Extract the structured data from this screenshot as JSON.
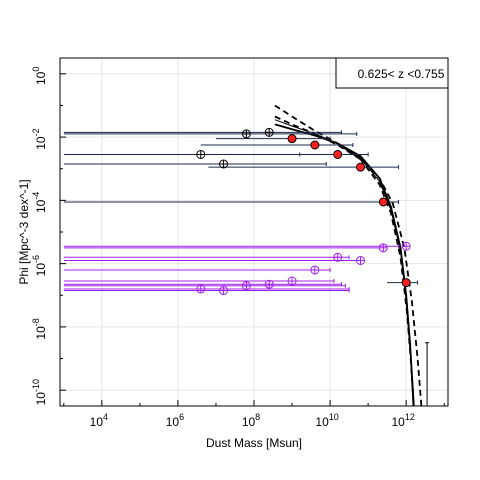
{
  "chart_data": {
    "type": "scatter",
    "title": "",
    "xlabel": "Dust Mass [Msun]",
    "ylabel": "Phi [Mpc^-3 dex^-1]",
    "legend_text": "0.625< z <0.755",
    "legend_position": "top-right",
    "xscale": "log",
    "yscale": "log",
    "xlim_log10": [
      2.9,
      13.1
    ],
    "ylim_log10": [
      -10.5,
      0.5
    ],
    "grid": true,
    "x_ticks": [
      {
        "label": "10",
        "exp": "4",
        "log10": 4
      },
      {
        "label": "10",
        "exp": "6",
        "log10": 6
      },
      {
        "label": "10",
        "exp": "8",
        "log10": 8
      },
      {
        "label": "10",
        "exp": "10",
        "log10": 10
      },
      {
        "label": "10",
        "exp": "12",
        "log10": 12
      }
    ],
    "y_ticks": [
      {
        "label": "10",
        "exp": "0",
        "log10": 0
      },
      {
        "label": "10",
        "exp": "-2",
        "log10": -2
      },
      {
        "label": "10",
        "exp": "-4",
        "log10": -4
      },
      {
        "label": "10",
        "exp": "-6",
        "log10": -6
      },
      {
        "label": "10",
        "exp": "-8",
        "log10": -8
      },
      {
        "label": "10",
        "exp": "-10",
        "log10": -10
      }
    ],
    "series": [
      {
        "color": "#ff2020",
        "marker": "filled-circle",
        "points": [
          {
            "x": 9.0,
            "y": -2.05,
            "xlo": 7.0,
            "xhi": 10.0
          },
          {
            "x": 9.6,
            "y": -2.25,
            "xlo": 6.6,
            "xhi": 10.6
          },
          {
            "x": 10.2,
            "y": -2.55,
            "xlo": 7.3,
            "xhi": 11.0
          },
          {
            "x": 10.8,
            "y": -2.95,
            "xlo": 6.8,
            "xhi": 11.8
          },
          {
            "x": 11.4,
            "y": -4.05,
            "xlo": 3.0,
            "xhi": 11.8
          },
          {
            "x": 12.0,
            "y": -6.6,
            "xlo": 11.5,
            "xhi": 12.3
          }
        ]
      },
      {
        "color": "#000000",
        "marker": "open-circle-cross",
        "points": [
          {
            "x": 6.6,
            "y": -2.55,
            "xlo": 3.0,
            "xhi": 9.2
          },
          {
            "x": 7.2,
            "y": -2.85,
            "xlo": 3.0,
            "xhi": 9.9
          },
          {
            "x": 7.8,
            "y": -1.9,
            "xlo": 3.0,
            "xhi": 10.7
          },
          {
            "x": 8.4,
            "y": -1.85,
            "xlo": 3.0,
            "xhi": 10.3
          }
        ]
      },
      {
        "color": "#a020f0",
        "marker": "open-circle-cross",
        "points": [
          {
            "x": 6.6,
            "y": -6.8,
            "xlo": 3.0,
            "xhi": 10.5
          },
          {
            "x": 7.2,
            "y": -6.85,
            "xlo": 3.0,
            "xhi": 10.5
          },
          {
            "x": 7.8,
            "y": -6.7,
            "xlo": 3.0,
            "xhi": 10.4
          },
          {
            "x": 8.4,
            "y": -6.65,
            "xlo": 3.0,
            "xhi": 10.3
          },
          {
            "x": 9.0,
            "y": -6.55,
            "xlo": 3.0,
            "xhi": 10.1
          },
          {
            "x": 9.6,
            "y": -6.2,
            "xlo": 3.0,
            "xhi": 10.0
          },
          {
            "x": 10.2,
            "y": -5.8,
            "xlo": 3.0,
            "xhi": 10.5
          },
          {
            "x": 10.8,
            "y": -5.9,
            "xlo": 3.0,
            "xhi": 10.8
          },
          {
            "x": 11.4,
            "y": -5.5,
            "xlo": 3.0,
            "xhi": 11.3
          },
          {
            "x": 12.0,
            "y": -5.45,
            "xlo": 3.0,
            "xhi": 11.8
          }
        ]
      }
    ],
    "upper_limit": {
      "x": 12.55,
      "y_from": -10.5,
      "y_to": -8.5
    },
    "fit_curves": [
      {
        "style": "solid",
        "weight": "thick",
        "points": [
          [
            8.55,
            -1.6
          ],
          [
            9.0,
            -1.75
          ],
          [
            9.6,
            -1.95
          ],
          [
            10.2,
            -2.2
          ],
          [
            10.8,
            -2.6
          ],
          [
            11.3,
            -3.3
          ],
          [
            11.6,
            -4.2
          ],
          [
            11.85,
            -5.5
          ],
          [
            12.0,
            -7.0
          ],
          [
            12.1,
            -8.5
          ],
          [
            12.2,
            -10.5
          ]
        ]
      },
      {
        "style": "solid",
        "weight": "thin",
        "points": [
          [
            8.55,
            -1.45
          ],
          [
            9.0,
            -1.65
          ],
          [
            9.6,
            -1.9
          ],
          [
            10.2,
            -2.2
          ],
          [
            10.8,
            -2.65
          ],
          [
            11.3,
            -3.4
          ],
          [
            11.6,
            -4.3
          ],
          [
            11.85,
            -5.6
          ],
          [
            12.0,
            -7.2
          ],
          [
            12.12,
            -9.0
          ],
          [
            12.18,
            -10.5
          ]
        ]
      },
      {
        "style": "dashed",
        "weight": "thick",
        "points": [
          [
            8.55,
            -1.0
          ],
          [
            9.0,
            -1.35
          ],
          [
            9.6,
            -1.8
          ],
          [
            10.2,
            -2.2
          ],
          [
            10.8,
            -2.7
          ],
          [
            11.3,
            -3.5
          ],
          [
            11.6,
            -4.4
          ],
          [
            11.85,
            -5.8
          ],
          [
            12.02,
            -7.5
          ],
          [
            12.12,
            -9.0
          ],
          [
            12.2,
            -10.5
          ]
        ]
      },
      {
        "style": "dashed",
        "weight": "thick",
        "points": [
          [
            8.55,
            -1.35
          ],
          [
            9.0,
            -1.6
          ],
          [
            9.6,
            -1.9
          ],
          [
            10.2,
            -2.25
          ],
          [
            10.8,
            -2.7
          ],
          [
            11.3,
            -3.3
          ],
          [
            11.65,
            -4.1
          ],
          [
            11.95,
            -5.5
          ],
          [
            12.15,
            -7.2
          ],
          [
            12.3,
            -9.0
          ],
          [
            12.4,
            -10.5
          ]
        ]
      }
    ]
  }
}
